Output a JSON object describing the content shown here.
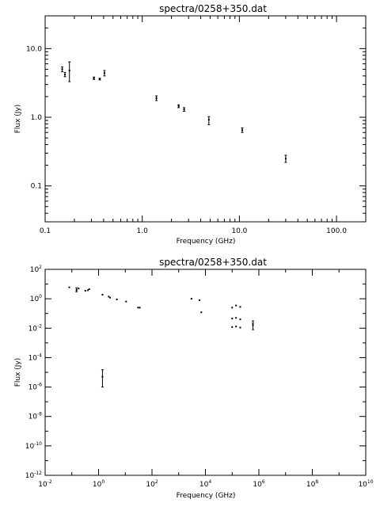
{
  "chart_data": [
    {
      "type": "scatter",
      "title": "spectra/0258+350.dat",
      "xlabel": "Frequency (GHz)",
      "ylabel": "Flux (Jy)",
      "xscale": "log",
      "yscale": "log",
      "xlim": [
        0.1,
        200
      ],
      "ylim": [
        0.03,
        30
      ],
      "xticks": [
        {
          "v": 0.1,
          "label": "0.1"
        },
        {
          "v": 1,
          "label": "1.0"
        },
        {
          "v": 10,
          "label": "10.0"
        },
        {
          "v": 100,
          "label": "100.0"
        }
      ],
      "yticks": [
        {
          "v": 0.1,
          "label": "0.1"
        },
        {
          "v": 1,
          "label": "1.0"
        },
        {
          "v": 10,
          "label": "10.0"
        }
      ],
      "points": [
        {
          "x": 0.15,
          "y": 5.0,
          "lo": 4.6,
          "hi": 5.4
        },
        {
          "x": 0.16,
          "y": 4.2,
          "lo": 3.9,
          "hi": 4.5
        },
        {
          "x": 0.178,
          "y": 4.8,
          "lo": 3.3,
          "hi": 6.4
        },
        {
          "x": 0.318,
          "y": 3.7,
          "lo": 3.55,
          "hi": 3.85
        },
        {
          "x": 0.365,
          "y": 3.6,
          "lo": 3.5,
          "hi": 3.7
        },
        {
          "x": 0.408,
          "y": 4.4,
          "lo": 4.0,
          "hi": 4.8
        },
        {
          "x": 1.4,
          "y": 1.9,
          "lo": 1.75,
          "hi": 2.05
        },
        {
          "x": 2.37,
          "y": 1.45,
          "lo": 1.38,
          "hi": 1.52
        },
        {
          "x": 2.7,
          "y": 1.3,
          "lo": 1.22,
          "hi": 1.38
        },
        {
          "x": 4.85,
          "y": 0.92,
          "lo": 0.78,
          "hi": 1.02
        },
        {
          "x": 10.7,
          "y": 0.65,
          "lo": 0.6,
          "hi": 0.7
        },
        {
          "x": 30.0,
          "y": 0.25,
          "lo": 0.22,
          "hi": 0.28
        }
      ]
    },
    {
      "type": "scatter",
      "title": "spectra/0258+350.dat",
      "xlabel": "Frequency (GHz)",
      "ylabel": "Flux (Jy)",
      "xscale": "log",
      "yscale": "log",
      "xlim": [
        0.01,
        10000000000.0
      ],
      "ylim": [
        1e-12,
        100
      ],
      "xticks": [
        {
          "v": 0.01,
          "b": "10",
          "e": "-2"
        },
        {
          "v": 1,
          "b": "10",
          "e": "0"
        },
        {
          "v": 100,
          "b": "10",
          "e": "2"
        },
        {
          "v": 10000,
          "b": "10",
          "e": "4"
        },
        {
          "v": 1000000,
          "b": "10",
          "e": "6"
        },
        {
          "v": 100000000,
          "b": "10",
          "e": "8"
        },
        {
          "v": 10000000000,
          "b": "10",
          "e": "10"
        }
      ],
      "yticks": [
        {
          "v": 1e-12,
          "b": "10",
          "e": "-12"
        },
        {
          "v": 1e-10,
          "b": "10",
          "e": "-10"
        },
        {
          "v": 1e-08,
          "b": "10",
          "e": "-8"
        },
        {
          "v": 1e-06,
          "b": "10",
          "e": "-6"
        },
        {
          "v": 0.0001,
          "b": "10",
          "e": "-4"
        },
        {
          "v": 0.01,
          "b": "10",
          "e": "-2"
        },
        {
          "v": 1,
          "b": "10",
          "e": "0"
        },
        {
          "v": 100,
          "b": "10",
          "e": "2"
        }
      ],
      "points": [
        {
          "x": 0.08,
          "y": 6.0
        },
        {
          "x": 0.15,
          "y": 4.0,
          "lo": 3.0,
          "hi": 5.5
        },
        {
          "x": 0.18,
          "y": 5.0
        },
        {
          "x": 0.32,
          "y": 3.5
        },
        {
          "x": 0.4,
          "y": 3.8
        },
        {
          "x": 0.45,
          "y": 4.5
        },
        {
          "x": 1.4,
          "y": 1.9
        },
        {
          "x": 2.4,
          "y": 1.4
        },
        {
          "x": 2.7,
          "y": 1.2
        },
        {
          "x": 4.85,
          "y": 0.9
        },
        {
          "x": 10.7,
          "y": 0.65
        },
        {
          "x": 1.4,
          "y": 5e-06,
          "lo": 1e-06,
          "hi": 1.5e-05
        },
        {
          "x": 30,
          "y": 0.25
        },
        {
          "x": 35,
          "y": 0.25
        },
        {
          "x": 3000,
          "y": 1.0
        },
        {
          "x": 6000,
          "y": 0.8
        },
        {
          "x": 7000,
          "y": 0.12
        },
        {
          "x": 100000,
          "y": 0.25
        },
        {
          "x": 140000,
          "y": 0.35
        },
        {
          "x": 200000,
          "y": 0.28
        },
        {
          "x": 100000,
          "y": 0.045
        },
        {
          "x": 140000,
          "y": 0.05
        },
        {
          "x": 200000,
          "y": 0.04
        },
        {
          "x": 100000,
          "y": 0.012
        },
        {
          "x": 140000,
          "y": 0.013
        },
        {
          "x": 200000,
          "y": 0.011
        },
        {
          "x": 600000,
          "y": 0.03
        },
        {
          "x": 600000,
          "y": 0.016,
          "lo": 0.008,
          "hi": 0.022
        }
      ]
    }
  ]
}
